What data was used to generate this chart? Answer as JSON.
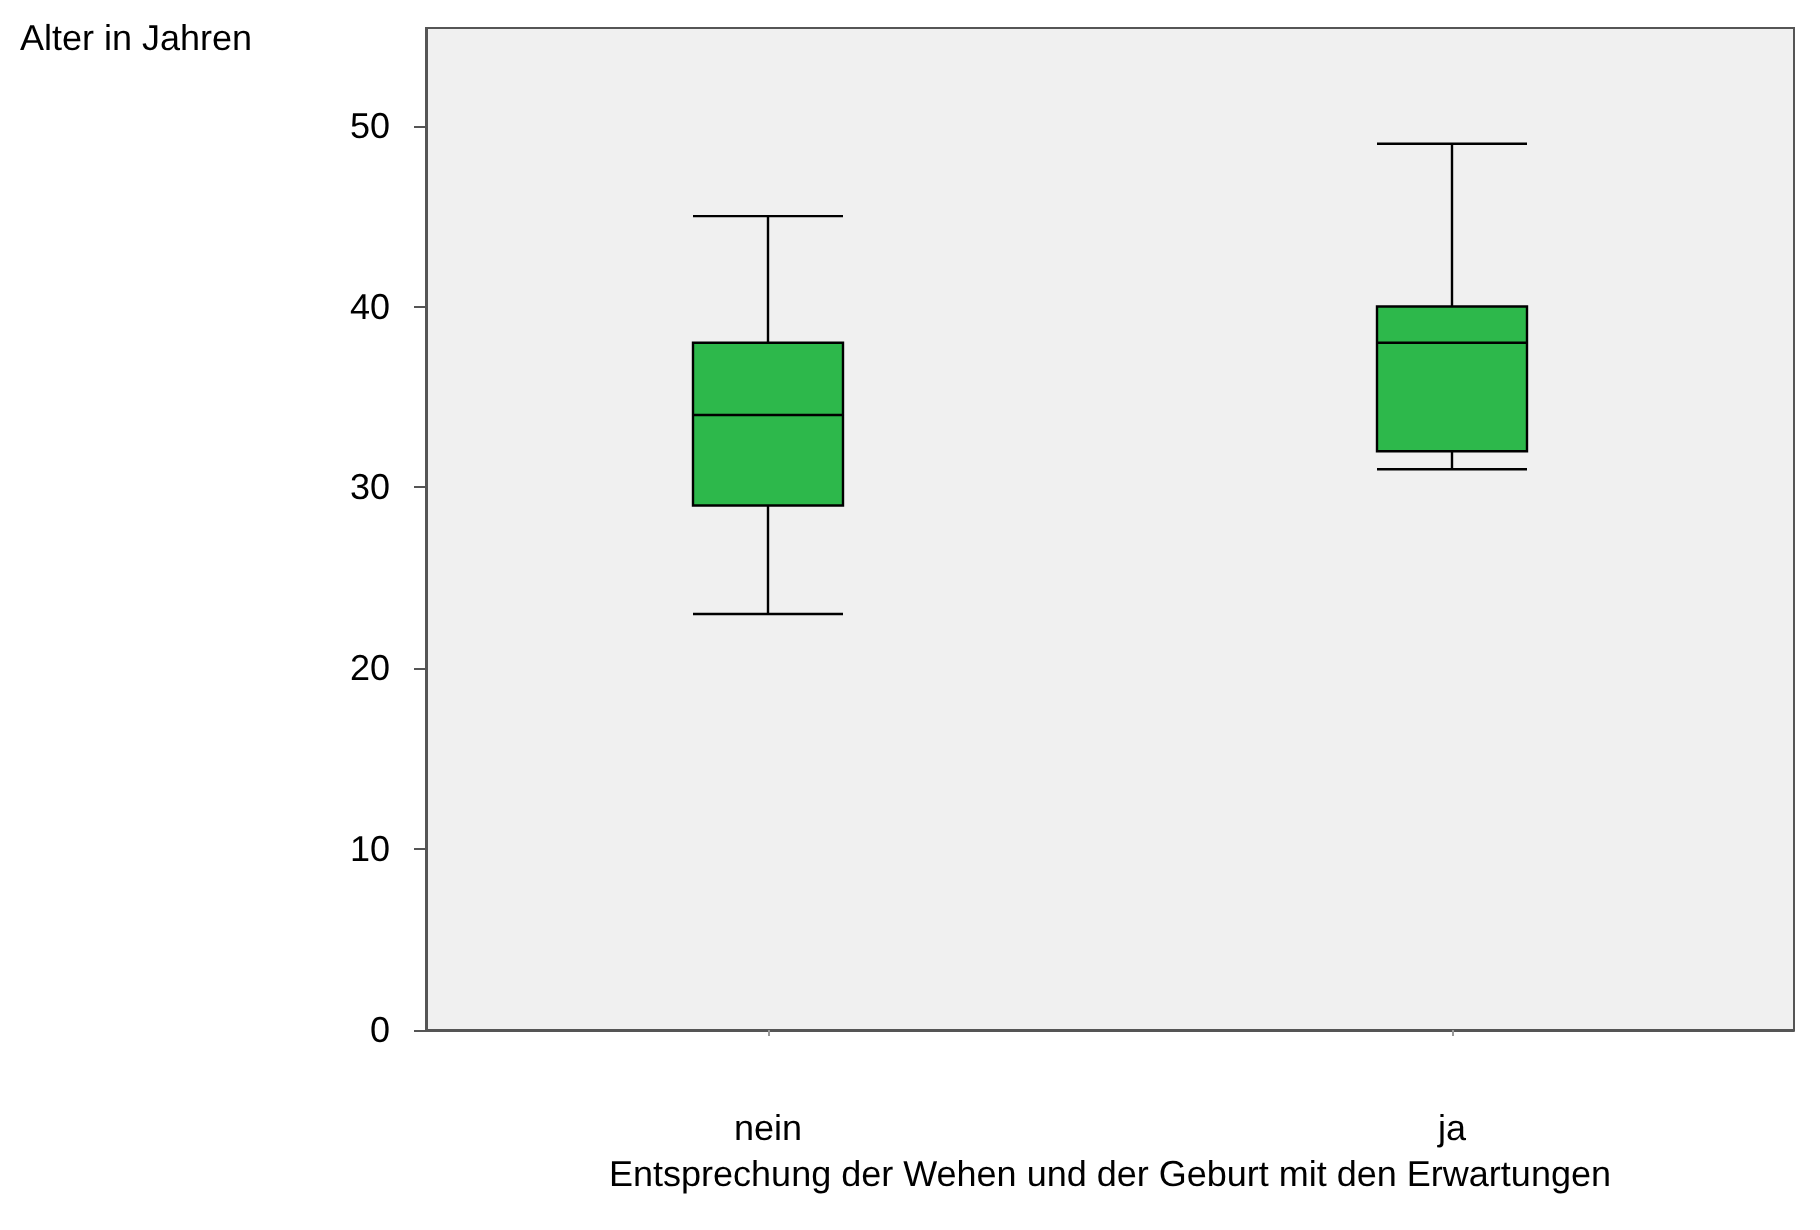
{
  "chart_data": {
    "type": "box",
    "ylabel": "Alter in Jahren",
    "xlabel": "Entsprechung der Wehen und der Geburt mit den Erwartungen",
    "categories": [
      "nein",
      "ja"
    ],
    "boxes": [
      {
        "low": 23,
        "q1": 29,
        "median": 34,
        "q3": 38,
        "high": 45
      },
      {
        "low": 31,
        "q1": 32,
        "median": 38,
        "q3": 40,
        "high": 49
      }
    ],
    "color": "#2db84b",
    "ylim": [
      0,
      55.4
    ],
    "yticks": [
      0,
      10,
      20,
      30,
      40,
      50
    ],
    "grid": false
  }
}
